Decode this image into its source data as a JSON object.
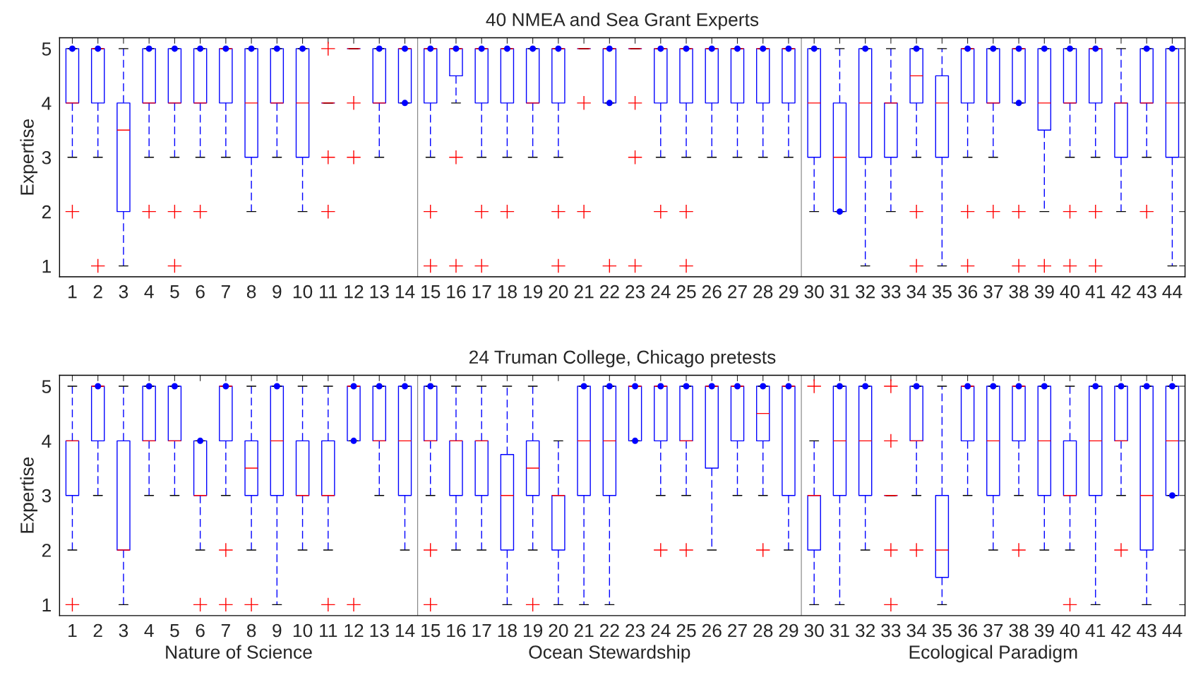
{
  "chart_data": [
    {
      "type": "box",
      "title": "40 NMEA and Sea Grant Experts",
      "ylabel": "Expertise",
      "categories": [
        "1",
        "2",
        "3",
        "4",
        "5",
        "6",
        "7",
        "8",
        "9",
        "10",
        "11",
        "12",
        "13",
        "14",
        "15",
        "16",
        "17",
        "18",
        "19",
        "20",
        "21",
        "22",
        "23",
        "24",
        "25",
        "26",
        "27",
        "28",
        "29",
        "30",
        "31",
        "32",
        "33",
        "34",
        "35",
        "36",
        "37",
        "38",
        "39",
        "40",
        "41",
        "42",
        "43",
        "44"
      ],
      "boxes": [
        {
          "low": 3,
          "q1": 4,
          "median": 4,
          "q3": 5,
          "high": 5,
          "outliers": [
            2
          ]
        },
        {
          "low": 3,
          "q1": 4,
          "median": 5,
          "q3": 5,
          "high": 5,
          "outliers": [
            1
          ]
        },
        {
          "low": 1,
          "q1": 2,
          "median": 3.5,
          "q3": 4,
          "high": 5
        },
        {
          "low": 3,
          "q1": 4,
          "median": 4,
          "q3": 5,
          "high": 5,
          "outliers": [
            2
          ]
        },
        {
          "low": 3,
          "q1": 4,
          "median": 4,
          "q3": 5,
          "high": 5,
          "outliers": [
            2,
            1
          ]
        },
        {
          "low": 3,
          "q1": 4,
          "median": 4,
          "q3": 5,
          "high": 5,
          "outliers": [
            2
          ]
        },
        {
          "low": 3,
          "q1": 4,
          "median": 5,
          "q3": 5,
          "high": 5
        },
        {
          "low": 2,
          "q1": 3,
          "median": 4,
          "q3": 5,
          "high": 5
        },
        {
          "low": 3,
          "q1": 4,
          "median": 4,
          "q3": 5,
          "high": 5
        },
        {
          "low": 2,
          "q1": 3,
          "median": 4,
          "q3": 5,
          "high": 5
        },
        {
          "low": 4,
          "q1": 4,
          "median": 4,
          "q3": 4,
          "high": 4,
          "outliers": [
            5,
            3,
            2
          ]
        },
        {
          "low": 5,
          "q1": 5,
          "median": 5,
          "q3": 5,
          "high": 5,
          "outliers": [
            4,
            3
          ]
        },
        {
          "low": 3,
          "q1": 4,
          "median": 4,
          "q3": 5,
          "high": 5
        },
        {
          "low": 4,
          "q1": 4,
          "median": 5,
          "q3": 5,
          "high": 5
        },
        {
          "low": 3,
          "q1": 4,
          "median": 5,
          "q3": 5,
          "high": 5,
          "outliers": [
            2,
            1
          ]
        },
        {
          "low": 4,
          "q1": 4.5,
          "median": 5,
          "q3": 5,
          "high": 5,
          "outliers": [
            3,
            1
          ]
        },
        {
          "low": 3,
          "q1": 4,
          "median": 5,
          "q3": 5,
          "high": 5,
          "outliers": [
            2,
            1
          ]
        },
        {
          "low": 3,
          "q1": 4,
          "median": 5,
          "q3": 5,
          "high": 5,
          "outliers": [
            2
          ]
        },
        {
          "low": 3,
          "q1": 4,
          "median": 4,
          "q3": 5,
          "high": 5
        },
        {
          "low": 3,
          "q1": 4,
          "median": 5,
          "q3": 5,
          "high": 5,
          "outliers": [
            2,
            1
          ]
        },
        {
          "low": 5,
          "q1": 5,
          "median": 5,
          "q3": 5,
          "high": 5,
          "outliers": [
            4,
            2
          ]
        },
        {
          "low": 4,
          "q1": 4,
          "median": 5,
          "q3": 5,
          "high": 5,
          "outliers": [
            1
          ]
        },
        {
          "low": 5,
          "q1": 5,
          "median": 5,
          "q3": 5,
          "high": 5,
          "outliers": [
            4,
            3,
            1
          ]
        },
        {
          "low": 3,
          "q1": 4,
          "median": 5,
          "q3": 5,
          "high": 5,
          "outliers": [
            2
          ]
        },
        {
          "low": 3,
          "q1": 4,
          "median": 5,
          "q3": 5,
          "high": 5,
          "outliers": [
            2,
            1
          ]
        },
        {
          "low": 3,
          "q1": 4,
          "median": 5,
          "q3": 5,
          "high": 5
        },
        {
          "low": 3,
          "q1": 4,
          "median": 5,
          "q3": 5,
          "high": 5
        },
        {
          "low": 3,
          "q1": 4,
          "median": 5,
          "q3": 5,
          "high": 5
        },
        {
          "low": 3,
          "q1": 4,
          "median": 5,
          "q3": 5,
          "high": 5
        },
        {
          "low": 2,
          "q1": 3,
          "median": 4,
          "q3": 5,
          "high": 5
        },
        {
          "low": 2,
          "q1": 2,
          "median": 3,
          "q3": 4,
          "high": 5
        },
        {
          "low": 1,
          "q1": 3,
          "median": 4,
          "q3": 5,
          "high": 5
        },
        {
          "low": 2,
          "q1": 3,
          "median": 4,
          "q3": 4,
          "high": 5
        },
        {
          "low": 3,
          "q1": 4,
          "median": 4.5,
          "q3": 5,
          "high": 5,
          "outliers": [
            2,
            1
          ]
        },
        {
          "low": 1,
          "q1": 3,
          "median": 4,
          "q3": 4.5,
          "high": 5
        },
        {
          "low": 3,
          "q1": 4,
          "median": 5,
          "q3": 5,
          "high": 5,
          "outliers": [
            2,
            1
          ]
        },
        {
          "low": 3,
          "q1": 4,
          "median": 4,
          "q3": 5,
          "high": 5,
          "outliers": [
            2
          ]
        },
        {
          "low": 4,
          "q1": 4,
          "median": 5,
          "q3": 5,
          "high": 5,
          "outliers": [
            2,
            1
          ]
        },
        {
          "low": 2,
          "q1": 3.5,
          "median": 4,
          "q3": 5,
          "high": 5,
          "outliers": [
            1
          ]
        },
        {
          "low": 3,
          "q1": 4,
          "median": 4,
          "q3": 5,
          "high": 5,
          "outliers": [
            2,
            1
          ]
        },
        {
          "low": 3,
          "q1": 4,
          "median": 5,
          "q3": 5,
          "high": 5,
          "outliers": [
            2,
            1
          ]
        },
        {
          "low": 2,
          "q1": 3,
          "median": 4,
          "q3": 4,
          "high": 5
        },
        {
          "low": 3,
          "q1": 4,
          "median": 4,
          "q3": 5,
          "high": 5,
          "outliers": [
            2
          ]
        },
        {
          "low": 1,
          "q1": 3,
          "median": 4,
          "q3": 5,
          "high": 5
        }
      ],
      "series": [
        {
          "type": "scatter",
          "color": "#0000ff",
          "marker": "circle",
          "x": [
            "1",
            "2",
            "4",
            "5",
            "6",
            "7",
            "8",
            "9",
            "10",
            "13",
            "14",
            "14",
            "15",
            "16",
            "17",
            "18",
            "19",
            "20",
            "22",
            "22",
            "24",
            "25",
            "26",
            "27",
            "28",
            "29",
            "30",
            "31",
            "32",
            "34",
            "36",
            "37",
            "38",
            "38",
            "39",
            "40",
            "41",
            "43",
            "44"
          ],
          "values": [
            5,
            5,
            5,
            5,
            5,
            5,
            5,
            5,
            5,
            5,
            5,
            4,
            5,
            5,
            5,
            5,
            5,
            5,
            5,
            4,
            5,
            5,
            5,
            5,
            5,
            5,
            5,
            2,
            5,
            5,
            5,
            5,
            5,
            4,
            5,
            5,
            5,
            5,
            5
          ]
        }
      ],
      "ylim": [
        0.8,
        5.2
      ],
      "yticks": [
        1,
        2,
        3,
        4,
        5
      ],
      "grid": false,
      "line_style": "dashed"
    },
    {
      "type": "box",
      "title": "24 Truman College, Chicago pretests",
      "ylabel": "Expertise",
      "categories": [
        "1",
        "2",
        "3",
        "4",
        "5",
        "6",
        "7",
        "8",
        "9",
        "10",
        "11",
        "12",
        "13",
        "14",
        "15",
        "16",
        "17",
        "18",
        "19",
        "20",
        "21",
        "22",
        "23",
        "24",
        "25",
        "26",
        "27",
        "28",
        "29",
        "30",
        "31",
        "32",
        "33",
        "34",
        "35",
        "36",
        "37",
        "38",
        "39",
        "40",
        "41",
        "42",
        "43",
        "44"
      ],
      "boxes": [
        {
          "low": 2,
          "q1": 3,
          "median": 4,
          "q3": 4,
          "high": 5,
          "outliers": [
            1
          ]
        },
        {
          "low": 3,
          "q1": 4,
          "median": 5,
          "q3": 5,
          "high": 5
        },
        {
          "low": 1,
          "q1": 2,
          "median": 2,
          "q3": 4,
          "high": 5
        },
        {
          "low": 3,
          "q1": 4,
          "median": 4,
          "q3": 5,
          "high": 5
        },
        {
          "low": 3,
          "q1": 4,
          "median": 4,
          "q3": 5,
          "high": 5
        },
        {
          "low": 2,
          "q1": 3,
          "median": 3,
          "q3": 4,
          "high": 4,
          "outliers": [
            1
          ]
        },
        {
          "low": 3,
          "q1": 4,
          "median": 5,
          "q3": 5,
          "high": 5,
          "outliers": [
            2,
            1
          ]
        },
        {
          "low": 2,
          "q1": 3,
          "median": 3.5,
          "q3": 4,
          "high": 5,
          "outliers": [
            1
          ]
        },
        {
          "low": 1,
          "q1": 3,
          "median": 4,
          "q3": 5,
          "high": 5
        },
        {
          "low": 2,
          "q1": 3,
          "median": 3,
          "q3": 4,
          "high": 5
        },
        {
          "low": 2,
          "q1": 3,
          "median": 3,
          "q3": 4,
          "high": 5,
          "outliers": [
            1
          ]
        },
        {
          "low": 4,
          "q1": 4,
          "median": 5,
          "q3": 5,
          "high": 5,
          "outliers": [
            1
          ]
        },
        {
          "low": 3,
          "q1": 4,
          "median": 4,
          "q3": 5,
          "high": 5
        },
        {
          "low": 2,
          "q1": 3,
          "median": 4,
          "q3": 5,
          "high": 5
        },
        {
          "low": 3,
          "q1": 4,
          "median": 4,
          "q3": 5,
          "high": 5,
          "outliers": [
            2,
            1
          ]
        },
        {
          "low": 2,
          "q1": 3,
          "median": 4,
          "q3": 4,
          "high": 5
        },
        {
          "low": 2,
          "q1": 3,
          "median": 4,
          "q3": 4,
          "high": 5
        },
        {
          "low": 1,
          "q1": 2,
          "median": 3,
          "q3": 3.75,
          "high": 5
        },
        {
          "low": 2,
          "q1": 3,
          "median": 3.5,
          "q3": 4,
          "high": 5,
          "outliers": [
            1
          ]
        },
        {
          "low": 1,
          "q1": 2,
          "median": 3,
          "q3": 3,
          "high": 4
        },
        {
          "low": 1,
          "q1": 3,
          "median": 4,
          "q3": 5,
          "high": 5
        },
        {
          "low": 1,
          "q1": 3,
          "median": 4,
          "q3": 5,
          "high": 5
        },
        {
          "low": 4,
          "q1": 4,
          "median": 5,
          "q3": 5,
          "high": 5
        },
        {
          "low": 3,
          "q1": 4,
          "median": 5,
          "q3": 5,
          "high": 5,
          "outliers": [
            2
          ]
        },
        {
          "low": 3,
          "q1": 4,
          "median": 4,
          "q3": 5,
          "high": 5,
          "outliers": [
            2
          ]
        },
        {
          "low": 2,
          "q1": 3.5,
          "median": 5,
          "q3": 5,
          "high": 5
        },
        {
          "low": 3,
          "q1": 4,
          "median": 5,
          "q3": 5,
          "high": 5
        },
        {
          "low": 3,
          "q1": 4,
          "median": 4.5,
          "q3": 5,
          "high": 5,
          "outliers": [
            2
          ]
        },
        {
          "low": 2,
          "q1": 3,
          "median": 5,
          "q3": 5,
          "high": 5
        },
        {
          "low": 1,
          "q1": 2,
          "median": 3,
          "q3": 3,
          "high": 4,
          "outliers": [
            5
          ]
        },
        {
          "low": 1,
          "q1": 3,
          "median": 4,
          "q3": 5,
          "high": 5
        },
        {
          "low": 2,
          "q1": 3,
          "median": 4,
          "q3": 5,
          "high": 5
        },
        {
          "low": 3,
          "q1": 3,
          "median": 3,
          "q3": 3,
          "high": 3,
          "outliers": [
            5,
            4,
            2,
            1
          ]
        },
        {
          "low": 3,
          "q1": 4,
          "median": 4,
          "q3": 5,
          "high": 5,
          "outliers": [
            2
          ]
        },
        {
          "low": 1,
          "q1": 1.5,
          "median": 2,
          "q3": 3,
          "high": 5
        },
        {
          "low": 3,
          "q1": 4,
          "median": 5,
          "q3": 5,
          "high": 5
        },
        {
          "low": 2,
          "q1": 3,
          "median": 4,
          "q3": 5,
          "high": 5
        },
        {
          "low": 3,
          "q1": 4,
          "median": 5,
          "q3": 5,
          "high": 5,
          "outliers": [
            2
          ]
        },
        {
          "low": 2,
          "q1": 3,
          "median": 4,
          "q3": 5,
          "high": 5
        },
        {
          "low": 2,
          "q1": 3,
          "median": 3,
          "q3": 4,
          "high": 5,
          "outliers": [
            1
          ]
        },
        {
          "low": 1,
          "q1": 3,
          "median": 4,
          "q3": 5,
          "high": 5
        },
        {
          "low": 3,
          "q1": 4,
          "median": 4,
          "q3": 5,
          "high": 5,
          "outliers": [
            2
          ]
        },
        {
          "low": 1,
          "q1": 2,
          "median": 3,
          "q3": 5,
          "high": 5
        },
        {
          "low": 3,
          "q1": 3,
          "median": 4,
          "q3": 5,
          "high": 5
        }
      ],
      "series": [
        {
          "type": "scatter",
          "color": "#0000ff",
          "marker": "circle",
          "x": [
            "2",
            "4",
            "5",
            "6",
            "7",
            "9",
            "12",
            "12",
            "13",
            "14",
            "15",
            "21",
            "22",
            "23",
            "23",
            "24",
            "25",
            "26",
            "27",
            "28",
            "29",
            "31",
            "32",
            "34",
            "36",
            "37",
            "38",
            "39",
            "41",
            "42",
            "43",
            "44",
            "44"
          ],
          "values": [
            5,
            5,
            5,
            4,
            5,
            5,
            5,
            4,
            5,
            5,
            5,
            5,
            5,
            5,
            4,
            5,
            5,
            5,
            5,
            5,
            5,
            5,
            5,
            5,
            5,
            5,
            5,
            5,
            5,
            5,
            5,
            5,
            3
          ]
        }
      ],
      "ylim": [
        0.8,
        5.2
      ],
      "yticks": [
        1,
        2,
        3,
        4,
        5
      ],
      "grid": false,
      "line_style": "dashed",
      "annotations": [
        "Nature of Science",
        "Ocean Stewardship",
        "Ecological Paradigm"
      ]
    }
  ]
}
